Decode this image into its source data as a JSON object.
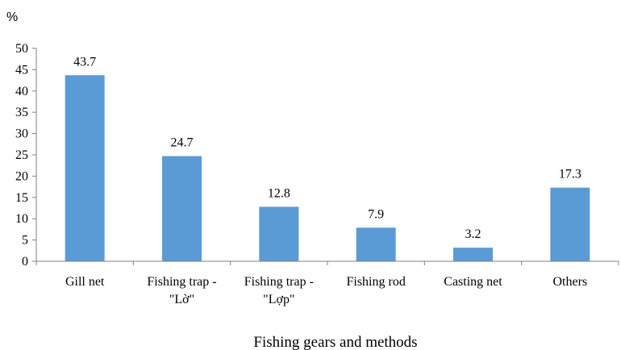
{
  "chart_data": {
    "type": "bar",
    "categories": [
      "Gill net",
      "Fishing trap - \"Lờ\"",
      "Fishing trap - \"Lợp\"",
      "Fishing rod",
      "Casting net",
      "Others"
    ],
    "category_lines": [
      [
        "Gill net"
      ],
      [
        "Fishing trap -",
        "\"Lờ\""
      ],
      [
        "Fishing trap -",
        "\"Lợp\""
      ],
      [
        "Fishing rod"
      ],
      [
        "Casting net"
      ],
      [
        "Others"
      ]
    ],
    "values": [
      43.7,
      24.7,
      12.8,
      7.9,
      3.2,
      17.3
    ],
    "data_labels": [
      "43.7",
      "24.7",
      "12.8",
      "7.9",
      "3.2",
      "17.3"
    ],
    "title": "",
    "xlabel": "Fishing gears and methods",
    "ylabel": "%",
    "ylim": [
      0,
      50
    ],
    "yticks": [
      0,
      5,
      10,
      15,
      20,
      25,
      30,
      35,
      40,
      45,
      50
    ],
    "grid": false,
    "legend": "none",
    "bar_color": "#5b9bd5",
    "axis_color": "#808080"
  }
}
